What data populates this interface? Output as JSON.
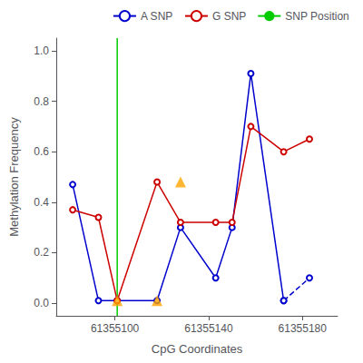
{
  "chart_data": {
    "type": "line",
    "xlabel": "CpG Coordinates",
    "ylabel": "Methylation Frequency",
    "xlim": [
      61355075,
      61355195
    ],
    "ylim": [
      -0.05,
      1.05
    ],
    "xticks": [
      61355100,
      61355140,
      61355180
    ],
    "yticks": [
      {
        "value": 0.0,
        "label": "0.0"
      },
      0.2,
      0.4,
      0.6,
      0.8,
      {
        "value": 1.0,
        "label": "1.0"
      }
    ],
    "grid": false,
    "legend": "upper right",
    "series": [
      {
        "name": "A SNP",
        "type": "line",
        "color": "#0000cc",
        "marker": "circle",
        "line_style": "solid",
        "x": [
          61355082,
          61355093,
          61355101,
          61355118,
          61355128,
          61355143,
          61355150,
          61355158,
          61355172
        ],
        "values": [
          0.47,
          0.01,
          0.01,
          0.01,
          0.3,
          0.1,
          0.3,
          0.91,
          0.01
        ]
      },
      {
        "name": "A SNP",
        "type": "line",
        "color": "#0000cc",
        "marker": "circle",
        "line_style": "dashed",
        "x": [
          61355172,
          61355183
        ],
        "values": [
          0.01,
          0.1
        ]
      },
      {
        "name": "G SNP",
        "type": "line",
        "color": "#cc0000",
        "marker": "circle",
        "line_style": "solid",
        "x": [
          61355082,
          61355093,
          61355101,
          61355118,
          61355128,
          61355143,
          61355150,
          61355158,
          61355172,
          61355183
        ],
        "values": [
          0.37,
          0.34,
          0.01,
          0.48,
          0.32,
          0.32,
          0.32,
          0.7,
          0.6,
          0.65
        ]
      },
      {
        "type": "scatter",
        "color": "#FFA500",
        "marker": "triangle",
        "x": [
          61355101,
          61355118,
          61355128
        ],
        "values": [
          0.01,
          0.01,
          0.48
        ]
      },
      {
        "name": "SNP Position",
        "type": "vline",
        "color": "#00cc00",
        "x": [
          61355101
        ]
      }
    ]
  }
}
